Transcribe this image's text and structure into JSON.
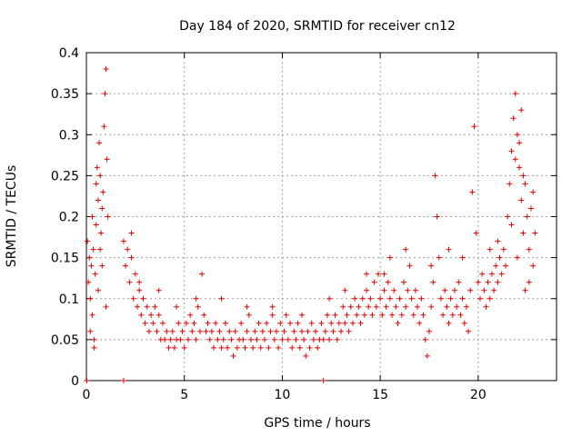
{
  "chart_data": {
    "type": "scatter",
    "title": "Day 184 of 2020, SRMTID for receiver cn12",
    "xlabel": "GPS time / hours",
    "ylabel": "SRMTID / TECUs",
    "xlim": [
      0,
      24
    ],
    "ylim": [
      0,
      0.4
    ],
    "xticks": [
      0,
      5,
      10,
      15,
      20
    ],
    "xtick_labels": [
      "0",
      "5",
      "10",
      "15",
      "20"
    ],
    "yticks": [
      0,
      0.05,
      0.1,
      0.15,
      0.2,
      0.25,
      0.3,
      0.35,
      0.4
    ],
    "ytick_labels": [
      "0",
      "0.05",
      "0.1",
      "0.15",
      "0.2",
      "0.25",
      "0.3",
      "0.35",
      "0.4"
    ],
    "grid": true,
    "marker": "+",
    "marker_color": "#e00000",
    "series": [
      {
        "name": "SRMTID",
        "points": [
          [
            0.05,
            0.17
          ],
          [
            0.1,
            0.12
          ],
          [
            0.15,
            0.15
          ],
          [
            0.2,
            0.1
          ],
          [
            0.25,
            0.14
          ],
          [
            0.3,
            0.08
          ],
          [
            0.35,
            0.16
          ],
          [
            0.4,
            0.05
          ],
          [
            0.45,
            0.13
          ],
          [
            0.5,
            0.19
          ],
          [
            0.55,
            0.26
          ],
          [
            0.6,
            0.22
          ],
          [
            0.65,
            0.29
          ],
          [
            0.7,
            0.25
          ],
          [
            0.75,
            0.18
          ],
          [
            0.8,
            0.21
          ],
          [
            0.85,
            0.23
          ],
          [
            0.9,
            0.31
          ],
          [
            0.95,
            0.35
          ],
          [
            1.0,
            0.38
          ],
          [
            1.05,
            0.27
          ],
          [
            1.1,
            0.2
          ],
          [
            0.2,
            0.06
          ],
          [
            0.4,
            0.04
          ],
          [
            0.6,
            0.11
          ],
          [
            0.8,
            0.14
          ],
          [
            1.0,
            0.09
          ],
          [
            0.3,
            0.2
          ],
          [
            0.5,
            0.24
          ],
          [
            0.7,
            0.16
          ],
          [
            1.9,
            0.17
          ],
          [
            2.0,
            0.14
          ],
          [
            2.1,
            0.16
          ],
          [
            2.2,
            0.12
          ],
          [
            2.3,
            0.15
          ],
          [
            2.4,
            0.1
          ],
          [
            2.5,
            0.13
          ],
          [
            2.6,
            0.09
          ],
          [
            2.7,
            0.11
          ],
          [
            2.8,
            0.08
          ],
          [
            2.9,
            0.1
          ],
          [
            3.0,
            0.07
          ],
          [
            3.1,
            0.09
          ],
          [
            3.2,
            0.06
          ],
          [
            3.3,
            0.08
          ],
          [
            3.4,
            0.07
          ],
          [
            3.5,
            0.09
          ],
          [
            3.6,
            0.06
          ],
          [
            3.7,
            0.08
          ],
          [
            3.8,
            0.05
          ],
          [
            3.9,
            0.07
          ],
          [
            4.0,
            0.05
          ],
          [
            4.1,
            0.06
          ],
          [
            4.2,
            0.04
          ],
          [
            4.3,
            0.05
          ],
          [
            4.4,
            0.06
          ],
          [
            4.5,
            0.04
          ],
          [
            4.6,
            0.05
          ],
          [
            4.7,
            0.07
          ],
          [
            4.8,
            0.05
          ],
          [
            4.9,
            0.06
          ],
          [
            5.0,
            0.04
          ],
          [
            5.1,
            0.07
          ],
          [
            5.2,
            0.05
          ],
          [
            5.3,
            0.08
          ],
          [
            5.4,
            0.06
          ],
          [
            5.5,
            0.07
          ],
          [
            5.6,
            0.05
          ],
          [
            5.7,
            0.09
          ],
          [
            5.8,
            0.06
          ],
          [
            5.9,
            0.13
          ],
          [
            6.0,
            0.08
          ],
          [
            6.1,
            0.06
          ],
          [
            6.2,
            0.07
          ],
          [
            6.3,
            0.05
          ],
          [
            6.4,
            0.06
          ],
          [
            6.5,
            0.04
          ],
          [
            6.6,
            0.07
          ],
          [
            6.7,
            0.05
          ],
          [
            6.8,
            0.06
          ],
          [
            6.9,
            0.04
          ],
          [
            7.0,
            0.05
          ],
          [
            7.1,
            0.07
          ],
          [
            7.2,
            0.04
          ],
          [
            7.3,
            0.06
          ],
          [
            7.4,
            0.05
          ],
          [
            7.5,
            0.03
          ],
          [
            7.6,
            0.06
          ],
          [
            7.7,
            0.04
          ],
          [
            7.8,
            0.05
          ],
          [
            7.9,
            0.07
          ],
          [
            8.0,
            0.05
          ],
          [
            8.1,
            0.04
          ],
          [
            8.2,
            0.06
          ],
          [
            8.3,
            0.08
          ],
          [
            8.4,
            0.05
          ],
          [
            8.5,
            0.04
          ],
          [
            8.6,
            0.06
          ],
          [
            8.7,
            0.05
          ],
          [
            8.8,
            0.07
          ],
          [
            8.9,
            0.04
          ],
          [
            9.0,
            0.06
          ],
          [
            9.1,
            0.05
          ],
          [
            9.2,
            0.07
          ],
          [
            9.3,
            0.04
          ],
          [
            9.4,
            0.06
          ],
          [
            9.5,
            0.08
          ],
          [
            9.6,
            0.05
          ],
          [
            9.7,
            0.06
          ],
          [
            9.8,
            0.04
          ],
          [
            9.9,
            0.07
          ],
          [
            10.0,
            0.05
          ],
          [
            10.1,
            0.06
          ],
          [
            10.2,
            0.08
          ],
          [
            10.3,
            0.05
          ],
          [
            10.4,
            0.07
          ],
          [
            10.5,
            0.04
          ],
          [
            10.6,
            0.06
          ],
          [
            10.7,
            0.05
          ],
          [
            10.8,
            0.07
          ],
          [
            10.9,
            0.04
          ],
          [
            11.0,
            0.06
          ],
          [
            11.1,
            0.05
          ],
          [
            11.2,
            0.03
          ],
          [
            11.3,
            0.06
          ],
          [
            11.4,
            0.04
          ],
          [
            11.5,
            0.07
          ],
          [
            11.6,
            0.05
          ],
          [
            11.7,
            0.06
          ],
          [
            11.8,
            0.04
          ],
          [
            11.9,
            0.05
          ],
          [
            12.0,
            0.07
          ],
          [
            12.1,
            0.05
          ],
          [
            12.2,
            0.06
          ],
          [
            12.3,
            0.08
          ],
          [
            12.4,
            0.05
          ],
          [
            12.5,
            0.07
          ],
          [
            12.6,
            0.06
          ],
          [
            12.7,
            0.08
          ],
          [
            12.8,
            0.05
          ],
          [
            12.9,
            0.07
          ],
          [
            13.0,
            0.06
          ],
          [
            13.1,
            0.09
          ],
          [
            13.2,
            0.07
          ],
          [
            13.3,
            0.08
          ],
          [
            13.4,
            0.06
          ],
          [
            13.5,
            0.09
          ],
          [
            13.6,
            0.07
          ],
          [
            13.7,
            0.1
          ],
          [
            13.8,
            0.08
          ],
          [
            13.9,
            0.09
          ],
          [
            14.0,
            0.07
          ],
          [
            14.1,
            0.1
          ],
          [
            14.2,
            0.08
          ],
          [
            14.3,
            0.11
          ],
          [
            14.4,
            0.09
          ],
          [
            14.5,
            0.1
          ],
          [
            14.6,
            0.08
          ],
          [
            14.7,
            0.12
          ],
          [
            14.8,
            0.09
          ],
          [
            14.9,
            0.13
          ],
          [
            15.0,
            0.1
          ],
          [
            15.1,
            0.08
          ],
          [
            15.2,
            0.11
          ],
          [
            15.3,
            0.09
          ],
          [
            15.4,
            0.12
          ],
          [
            15.5,
            0.1
          ],
          [
            15.6,
            0.08
          ],
          [
            15.7,
            0.11
          ],
          [
            15.8,
            0.09
          ],
          [
            15.9,
            0.07
          ],
          [
            16.0,
            0.1
          ],
          [
            16.1,
            0.08
          ],
          [
            16.2,
            0.12
          ],
          [
            16.3,
            0.09
          ],
          [
            16.4,
            0.11
          ],
          [
            16.5,
            0.14
          ],
          [
            16.6,
            0.1
          ],
          [
            16.7,
            0.08
          ],
          [
            16.8,
            0.11
          ],
          [
            16.9,
            0.09
          ],
          [
            17.0,
            0.07
          ],
          [
            17.1,
            0.1
          ],
          [
            17.2,
            0.08
          ],
          [
            17.3,
            0.05
          ],
          [
            17.4,
            0.03
          ],
          [
            17.5,
            0.06
          ],
          [
            17.6,
            0.09
          ],
          [
            17.7,
            0.12
          ],
          [
            17.8,
            0.25
          ],
          [
            17.9,
            0.2
          ],
          [
            18.0,
            0.15
          ],
          [
            18.1,
            0.1
          ],
          [
            18.2,
            0.08
          ],
          [
            18.3,
            0.11
          ],
          [
            18.4,
            0.09
          ],
          [
            18.5,
            0.07
          ],
          [
            18.6,
            0.1
          ],
          [
            18.7,
            0.08
          ],
          [
            18.8,
            0.11
          ],
          [
            18.9,
            0.09
          ],
          [
            19.0,
            0.12
          ],
          [
            19.1,
            0.08
          ],
          [
            19.2,
            0.1
          ],
          [
            19.3,
            0.07
          ],
          [
            19.4,
            0.09
          ],
          [
            19.5,
            0.06
          ],
          [
            19.6,
            0.11
          ],
          [
            19.7,
            0.23
          ],
          [
            19.8,
            0.31
          ],
          [
            19.9,
            0.18
          ],
          [
            20.0,
            0.12
          ],
          [
            20.1,
            0.1
          ],
          [
            20.2,
            0.13
          ],
          [
            20.3,
            0.11
          ],
          [
            20.4,
            0.09
          ],
          [
            20.5,
            0.12
          ],
          [
            20.6,
            0.1
          ],
          [
            20.7,
            0.13
          ],
          [
            20.8,
            0.11
          ],
          [
            20.9,
            0.14
          ],
          [
            21.0,
            0.12
          ],
          [
            21.1,
            0.15
          ],
          [
            21.2,
            0.13
          ],
          [
            21.3,
            0.16
          ],
          [
            21.4,
            0.14
          ],
          [
            21.5,
            0.2
          ],
          [
            21.6,
            0.24
          ],
          [
            21.7,
            0.28
          ],
          [
            21.8,
            0.32
          ],
          [
            21.9,
            0.35
          ],
          [
            22.0,
            0.3
          ],
          [
            22.1,
            0.26
          ],
          [
            22.2,
            0.22
          ],
          [
            22.3,
            0.18
          ],
          [
            22.4,
            0.24
          ],
          [
            22.5,
            0.2
          ],
          [
            22.6,
            0.16
          ],
          [
            22.7,
            0.21
          ],
          [
            22.8,
            0.14
          ],
          [
            22.9,
            0.18
          ],
          [
            22.1,
            0.29
          ],
          [
            22.3,
            0.25
          ],
          [
            22.6,
            0.12
          ],
          [
            22.8,
            0.23
          ],
          [
            21.7,
            0.19
          ],
          [
            22.0,
            0.15
          ],
          [
            22.4,
            0.11
          ],
          [
            21.9,
            0.27
          ],
          [
            22.2,
            0.33
          ],
          [
            15.2,
            0.13
          ],
          [
            15.5,
            0.15
          ],
          [
            16.3,
            0.16
          ],
          [
            17.6,
            0.14
          ],
          [
            18.5,
            0.16
          ],
          [
            19.2,
            0.15
          ],
          [
            20.6,
            0.16
          ],
          [
            21.0,
            0.17
          ],
          [
            14.3,
            0.13
          ],
          [
            13.2,
            0.11
          ],
          [
            12.4,
            0.1
          ],
          [
            11.0,
            0.08
          ],
          [
            9.5,
            0.09
          ],
          [
            8.2,
            0.09
          ],
          [
            6.9,
            0.1
          ],
          [
            5.6,
            0.1
          ],
          [
            4.6,
            0.09
          ],
          [
            3.7,
            0.11
          ],
          [
            2.7,
            0.12
          ],
          [
            2.3,
            0.18
          ],
          [
            0.02,
            0.0
          ],
          [
            1.9,
            0.0
          ],
          [
            12.1,
            0.0
          ]
        ]
      }
    ]
  }
}
